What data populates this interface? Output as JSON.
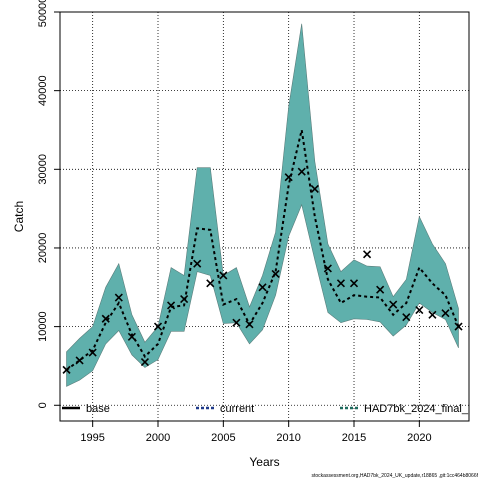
{
  "chart_data": {
    "type": "line",
    "xlabel": "Years",
    "ylabel": "Catch",
    "xlim": [
      1992.5,
      2023.8
    ],
    "ylim": [
      -2000,
      50000
    ],
    "xticks": [
      1995,
      2000,
      2005,
      2010,
      2015,
      2020
    ],
    "yticks": [
      0,
      10000,
      20000,
      30000,
      40000,
      50000
    ],
    "grid": true,
    "legend_position": "bottom",
    "legend": [
      {
        "label": "base",
        "style": "solid",
        "color": "#000000"
      },
      {
        "label": "current",
        "style": "dashed",
        "color": "#1f3a8a"
      },
      {
        "label": "HAD7bk_2024_final_",
        "style": "dashed",
        "color": "#1f6b5e"
      }
    ],
    "band_color": "#5fb0ac",
    "x": [
      1993,
      1994,
      1995,
      1996,
      1997,
      1998,
      1999,
      2000,
      2001,
      2002,
      2003,
      2004,
      2005,
      2006,
      2007,
      2008,
      2009,
      2010,
      2011,
      2012,
      2013,
      2014,
      2015,
      2016,
      2017,
      2018,
      2019,
      2020,
      2021,
      2022,
      2023
    ],
    "series": [
      {
        "name": "HAD7bk_2024_final_",
        "mean": [
          4500,
          5700,
          7000,
          10500,
          13000,
          9000,
          6200,
          7800,
          12500,
          12700,
          22500,
          22300,
          12800,
          13500,
          10300,
          13000,
          17000,
          28000,
          35000,
          24000,
          16000,
          13000,
          14000,
          13800,
          13700,
          11500,
          13000,
          17500,
          15500,
          14000,
          10000
        ],
        "upper": [
          6800,
          8500,
          10000,
          15000,
          18000,
          11500,
          8000,
          10000,
          17500,
          16500,
          30200,
          30200,
          16500,
          17500,
          12500,
          16500,
          22000,
          38000,
          48500,
          31000,
          20500,
          17000,
          18500,
          17700,
          17600,
          13800,
          16000,
          24000,
          20500,
          18000,
          12300
        ],
        "lower": [
          2400,
          3200,
          4400,
          7800,
          9500,
          6400,
          4800,
          5800,
          9400,
          9400,
          17000,
          16500,
          10400,
          10500,
          7800,
          9600,
          14000,
          21500,
          25500,
          18500,
          11800,
          10500,
          11000,
          10900,
          10600,
          8800,
          10200,
          13000,
          11800,
          10900,
          7300
        ]
      }
    ],
    "observed": {
      "x": [
        1993,
        1994,
        1995,
        1996,
        1997,
        1998,
        1999,
        2000,
        2001,
        2002,
        2003,
        2004,
        2005,
        2006,
        2007,
        2008,
        2009,
        2010,
        2011,
        2012,
        2013,
        2014,
        2015,
        2016,
        2017,
        2018,
        2019,
        2020,
        2021,
        2022,
        2023
      ],
      "y": [
        4500,
        5700,
        6700,
        11000,
        13700,
        8700,
        5500,
        10000,
        12700,
        13500,
        18000,
        15500,
        16500,
        10500,
        10300,
        15000,
        16700,
        29000,
        29700,
        27500,
        17400,
        15500,
        15500,
        19200,
        14700,
        12800,
        11200,
        12100,
        11500,
        11700,
        10000
      ]
    }
  },
  "footer": "stockassessment.org,HAD7bk_2024_UK_update,r18865 ,git:1cc464b8066f"
}
